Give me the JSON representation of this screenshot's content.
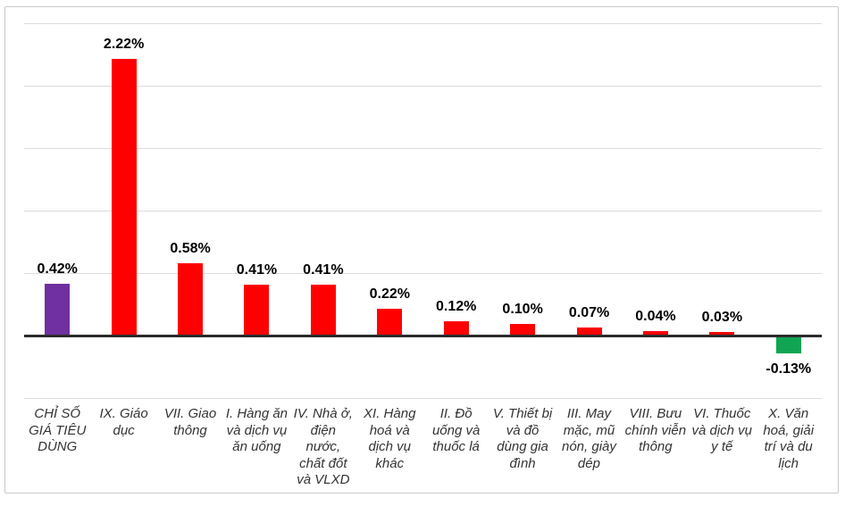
{
  "chart_data": {
    "type": "bar",
    "title": "",
    "xlabel": "",
    "ylabel": "",
    "legend": false,
    "grid": true,
    "ylim": [
      -0.5,
      2.5
    ],
    "gridlines": [
      2.5,
      2.0,
      1.5,
      1.0,
      0.5,
      -0.5
    ],
    "categories": [
      "CHỈ SỐ\nGIÁ TIÊU\nDÙNG",
      "IX. Giáo\ndục",
      "VII. Giao\nthông",
      "I. Hàng ăn\nvà dịch vụ\năn uống",
      "IV. Nhà ở,\nđiện\nnước,\nchất đốt\nvà VLXD",
      "XI. Hàng\nhoá và\ndịch vụ\nkhác",
      "II. Đồ\nuống và\nthuốc lá",
      "V. Thiết bị\nvà đồ\ndùng gia\nđình",
      "III. May\nmặc, mũ\nnón, giày\ndép",
      "VIII. Bưu\nchính viễn\nthông",
      "VI. Thuốc\nvà dịch vụ\ny tế",
      "X. Văn\nhoá, giải\ntrí và du\nlịch"
    ],
    "values": [
      0.42,
      2.22,
      0.58,
      0.41,
      0.41,
      0.22,
      0.12,
      0.1,
      0.07,
      0.04,
      0.03,
      -0.13
    ],
    "value_labels": [
      "0.42%",
      "2.22%",
      "0.58%",
      "0.41%",
      "0.41%",
      "0.22%",
      "0.12%",
      "0.10%",
      "0.07%",
      "0.04%",
      "0.03%",
      "-0.13%"
    ],
    "bar_colors": [
      "#7030A0",
      "#FF0000",
      "#FF0000",
      "#FF0000",
      "#FF0000",
      "#FF0000",
      "#FF0000",
      "#FF0000",
      "#FF0000",
      "#FF0000",
      "#FF0000",
      "#0FA552"
    ]
  },
  "style": {
    "background": "#FFFFFF",
    "grid_color": "#DCDCDC",
    "axis_color": "#2B2B2B",
    "frame_border_color": "#C9C9C9",
    "value_label_color": "#000000",
    "category_label_color": "#333333"
  }
}
